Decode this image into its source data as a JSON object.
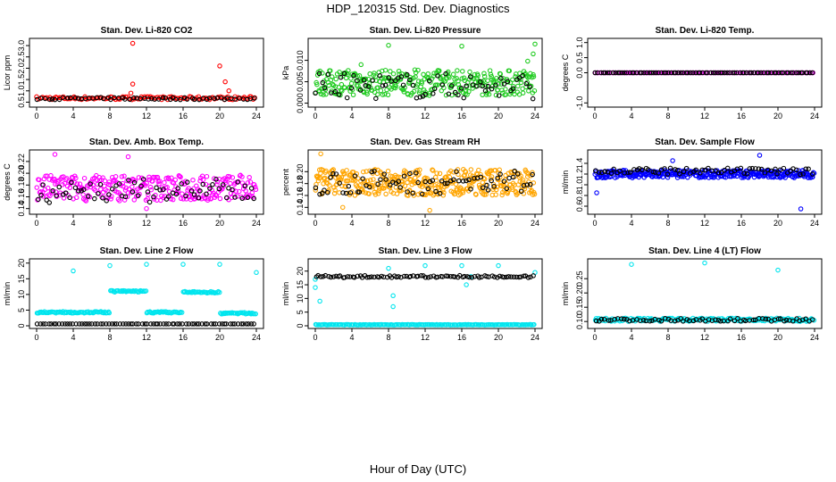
{
  "page": {
    "title": "HDP_120315 Std. Dev. Diagnostics",
    "x_caption": "Hour of Day (UTC)"
  },
  "colors": {
    "axis": "#000000",
    "black": "#000000",
    "red": "#ff0000",
    "green": "#22cc22",
    "magenta": "#ff00ff",
    "orange": "#ffa500",
    "blue": "#0000ff",
    "cyan": "#00e5ee"
  },
  "chart_data": [
    {
      "type": "scatter",
      "title": "Stan. Dev. Li-820 CO2",
      "ylabel": "Licor ppm",
      "xlabel": "",
      "xlim": [
        0,
        24
      ],
      "ylim": [
        0.4,
        3.2
      ],
      "xticks": [
        "0",
        "4",
        "8",
        "12",
        "16",
        "20",
        "24"
      ],
      "yticks": [
        "0.5",
        "1.0",
        "1.5",
        "2.0",
        "2.5",
        "3.0"
      ],
      "series": [
        {
          "name": "red",
          "color": "#ff0000",
          "base": 0.68,
          "spread": 0.07,
          "n": 120,
          "outliers": [
            [
              10.5,
              3.1
            ],
            [
              10.5,
              1.3
            ],
            [
              10.3,
              0.9
            ],
            [
              20,
              2.1
            ],
            [
              21,
              1.0
            ],
            [
              20.6,
              1.4
            ]
          ]
        },
        {
          "name": "black",
          "color": "#000000",
          "base": 0.66,
          "spread": 0.05,
          "n": 60,
          "outliers": []
        }
      ]
    },
    {
      "type": "scatter",
      "title": "Stan. Dev. Li-820 Pressure",
      "ylabel": "kPa",
      "xlabel": "",
      "xlim": [
        0,
        24
      ],
      "ylim": [
        -0.0003,
        0.0145
      ],
      "xticks": [
        "0",
        "4",
        "8",
        "12",
        "16",
        "20",
        "24"
      ],
      "yticks": [
        "0.000",
        "0.005",
        "0.010"
      ],
      "series": [
        {
          "name": "green",
          "color": "#22cc22",
          "base": 0.0048,
          "spread": 0.003,
          "n": 330,
          "outliers": [
            [
              8,
              0.0135
            ],
            [
              16,
              0.0133
            ],
            [
              24,
              0.0138
            ],
            [
              23.8,
              0.0115
            ],
            [
              23.2,
              0.0098
            ],
            [
              5,
              0.009
            ]
          ]
        },
        {
          "name": "black",
          "color": "#000000",
          "base": 0.004,
          "spread": 0.003,
          "n": 70,
          "outliers": []
        }
      ]
    },
    {
      "type": "scatter",
      "title": "Stan. Dev. Li-820 Temp.",
      "ylabel": "degrees C",
      "xlabel": "",
      "xlim": [
        0,
        24
      ],
      "ylim": [
        -1.05,
        1.05
      ],
      "xticks": [
        "0",
        "4",
        "8",
        "12",
        "16",
        "20",
        "24"
      ],
      "yticks": [
        "-1.0",
        "0.0",
        "0.5",
        "1.0"
      ],
      "series": [
        {
          "name": "magenta",
          "color": "#ff00ff",
          "base": 0.0,
          "spread": 0.0,
          "n": 110,
          "outliers": []
        },
        {
          "name": "black",
          "color": "#000000",
          "base": 0.0,
          "spread": 0.0,
          "n": 90,
          "outliers": []
        }
      ]
    },
    {
      "type": "scatter",
      "title": "Stan. Dev. Amb. Box Temp.",
      "ylabel": "degrees C",
      "xlabel": "",
      "xlim": [
        0,
        24
      ],
      "ylim": [
        0.135,
        0.235
      ],
      "xticks": [
        "0",
        "4",
        "8",
        "12",
        "16",
        "20",
        "24"
      ],
      "yticks": [
        "0.14",
        "0.16",
        "0.18",
        "0.20",
        "0.22"
      ],
      "series": [
        {
          "name": "magenta",
          "color": "#ff00ff",
          "base": 0.175,
          "spread": 0.022,
          "n": 300,
          "outliers": [
            [
              2,
              0.232
            ],
            [
              10,
              0.228
            ],
            [
              12,
              0.14
            ]
          ]
        },
        {
          "name": "black",
          "color": "#000000",
          "base": 0.17,
          "spread": 0.02,
          "n": 70,
          "outliers": []
        }
      ]
    },
    {
      "type": "scatter",
      "title": "Stan. Dev. Gas Stream RH",
      "ylabel": "percent",
      "xlabel": "",
      "xlim": [
        0,
        24
      ],
      "ylim": [
        0.133,
        0.232
      ],
      "xticks": [
        "0",
        "4",
        "8",
        "12",
        "16",
        "20",
        "24"
      ],
      "yticks": [
        "0.14",
        "0.16",
        "0.18",
        "0.20"
      ],
      "series": [
        {
          "name": "orange",
          "color": "#ffa500",
          "base": 0.182,
          "spread": 0.022,
          "n": 380,
          "outliers": [
            [
              0.6,
              0.23
            ],
            [
              12.5,
              0.135
            ],
            [
              3,
              0.14
            ]
          ]
        },
        {
          "name": "black",
          "color": "#000000",
          "base": 0.182,
          "spread": 0.02,
          "n": 75,
          "outliers": []
        }
      ]
    },
    {
      "type": "scatter",
      "title": "Stan. Dev. Sample Flow",
      "ylabel": "ml/min",
      "xlabel": "",
      "xlim": [
        0,
        24
      ],
      "ylim": [
        0.5,
        1.6
      ],
      "xticks": [
        "0",
        "4",
        "8",
        "12",
        "16",
        "20",
        "24"
      ],
      "yticks": [
        "0.6",
        "0.8",
        "1.0",
        "1.2",
        "1.4"
      ],
      "series": [
        {
          "name": "blue",
          "color": "#0000ff",
          "base": 1.2,
          "spread": 0.07,
          "n": 330,
          "outliers": [
            [
              0.2,
              0.85
            ],
            [
              18,
              1.55
            ],
            [
              22.5,
              0.55
            ],
            [
              8.5,
              1.45
            ]
          ]
        },
        {
          "name": "black",
          "color": "#000000",
          "base": 1.25,
          "spread": 0.06,
          "n": 70,
          "outliers": []
        }
      ]
    },
    {
      "type": "scatter",
      "title": "Stan. Dev. Line 2 Flow",
      "ylabel": "ml/min",
      "xlabel": "",
      "xlim": [
        0,
        24
      ],
      "ylim": [
        0,
        20.5
      ],
      "xticks": [
        "0",
        "4",
        "8",
        "12",
        "16",
        "20",
        "24"
      ],
      "yticks": [
        "0",
        "5",
        "10",
        "15",
        "20"
      ],
      "series": [
        {
          "name": "cyan",
          "color": "#00e5ee",
          "base": 4.5,
          "spread": 0.25,
          "n": 200,
          "segments": [
            [
              0,
              8,
              4.3
            ],
            [
              8,
              12,
              11
            ],
            [
              12,
              16,
              4.3
            ],
            [
              16,
              20,
              10.7
            ],
            [
              20,
              24,
              4
            ]
          ],
          "outliers": [
            [
              4,
              17.5
            ],
            [
              8,
              19.2
            ],
            [
              12,
              19.6
            ],
            [
              16,
              19.6
            ],
            [
              20,
              19.6
            ],
            [
              24,
              17
            ]
          ]
        },
        {
          "name": "black",
          "color": "#000000",
          "base": 0.6,
          "spread": 0.0,
          "n": 80,
          "outliers": []
        }
      ]
    },
    {
      "type": "scatter",
      "title": "Stan. Dev. Line 3 Flow",
      "ylabel": "ml/min",
      "xlabel": "",
      "xlim": [
        0,
        24
      ],
      "ylim": [
        0,
        23.5
      ],
      "xticks": [
        "0",
        "4",
        "8",
        "12",
        "16",
        "20",
        "24"
      ],
      "yticks": [
        "0",
        "5",
        "10",
        "15",
        "20"
      ],
      "series": [
        {
          "name": "cyan",
          "color": "#00e5ee",
          "base": 0.4,
          "spread": 0.1,
          "n": 180,
          "outliers": [
            [
              0,
              17
            ],
            [
              0,
              14
            ],
            [
              0.5,
              9
            ],
            [
              8.5,
              11
            ],
            [
              8.5,
              7
            ],
            [
              8,
              21
            ],
            [
              12,
              22
            ],
            [
              16,
              22
            ],
            [
              20,
              22
            ],
            [
              24,
              19.5
            ],
            [
              16.5,
              15
            ],
            [
              17,
              18
            ]
          ]
        },
        {
          "name": "black",
          "color": "#000000",
          "base": 18.0,
          "spread": 0.4,
          "n": 90,
          "outliers": []
        }
      ]
    },
    {
      "type": "scatter",
      "title": "Stan. Dev. Line 4 (LT) Flow",
      "ylabel": "ml/min",
      "xlabel": "",
      "xlim": [
        0,
        24
      ],
      "ylim": [
        0.085,
        0.31
      ],
      "xticks": [
        "0",
        "4",
        "8",
        "12",
        "16",
        "20",
        "24"
      ],
      "yticks": [
        "0.10",
        "0.15",
        "0.20",
        "0.25"
      ],
      "series": [
        {
          "name": "cyan",
          "color": "#00e5ee",
          "base": 0.106,
          "spread": 0.006,
          "n": 180,
          "outliers": [
            [
              4,
              0.3
            ],
            [
              12,
              0.305
            ],
            [
              20,
              0.28
            ]
          ]
        },
        {
          "name": "black",
          "color": "#000000",
          "base": 0.106,
          "spread": 0.005,
          "n": 70,
          "outliers": []
        }
      ]
    }
  ]
}
